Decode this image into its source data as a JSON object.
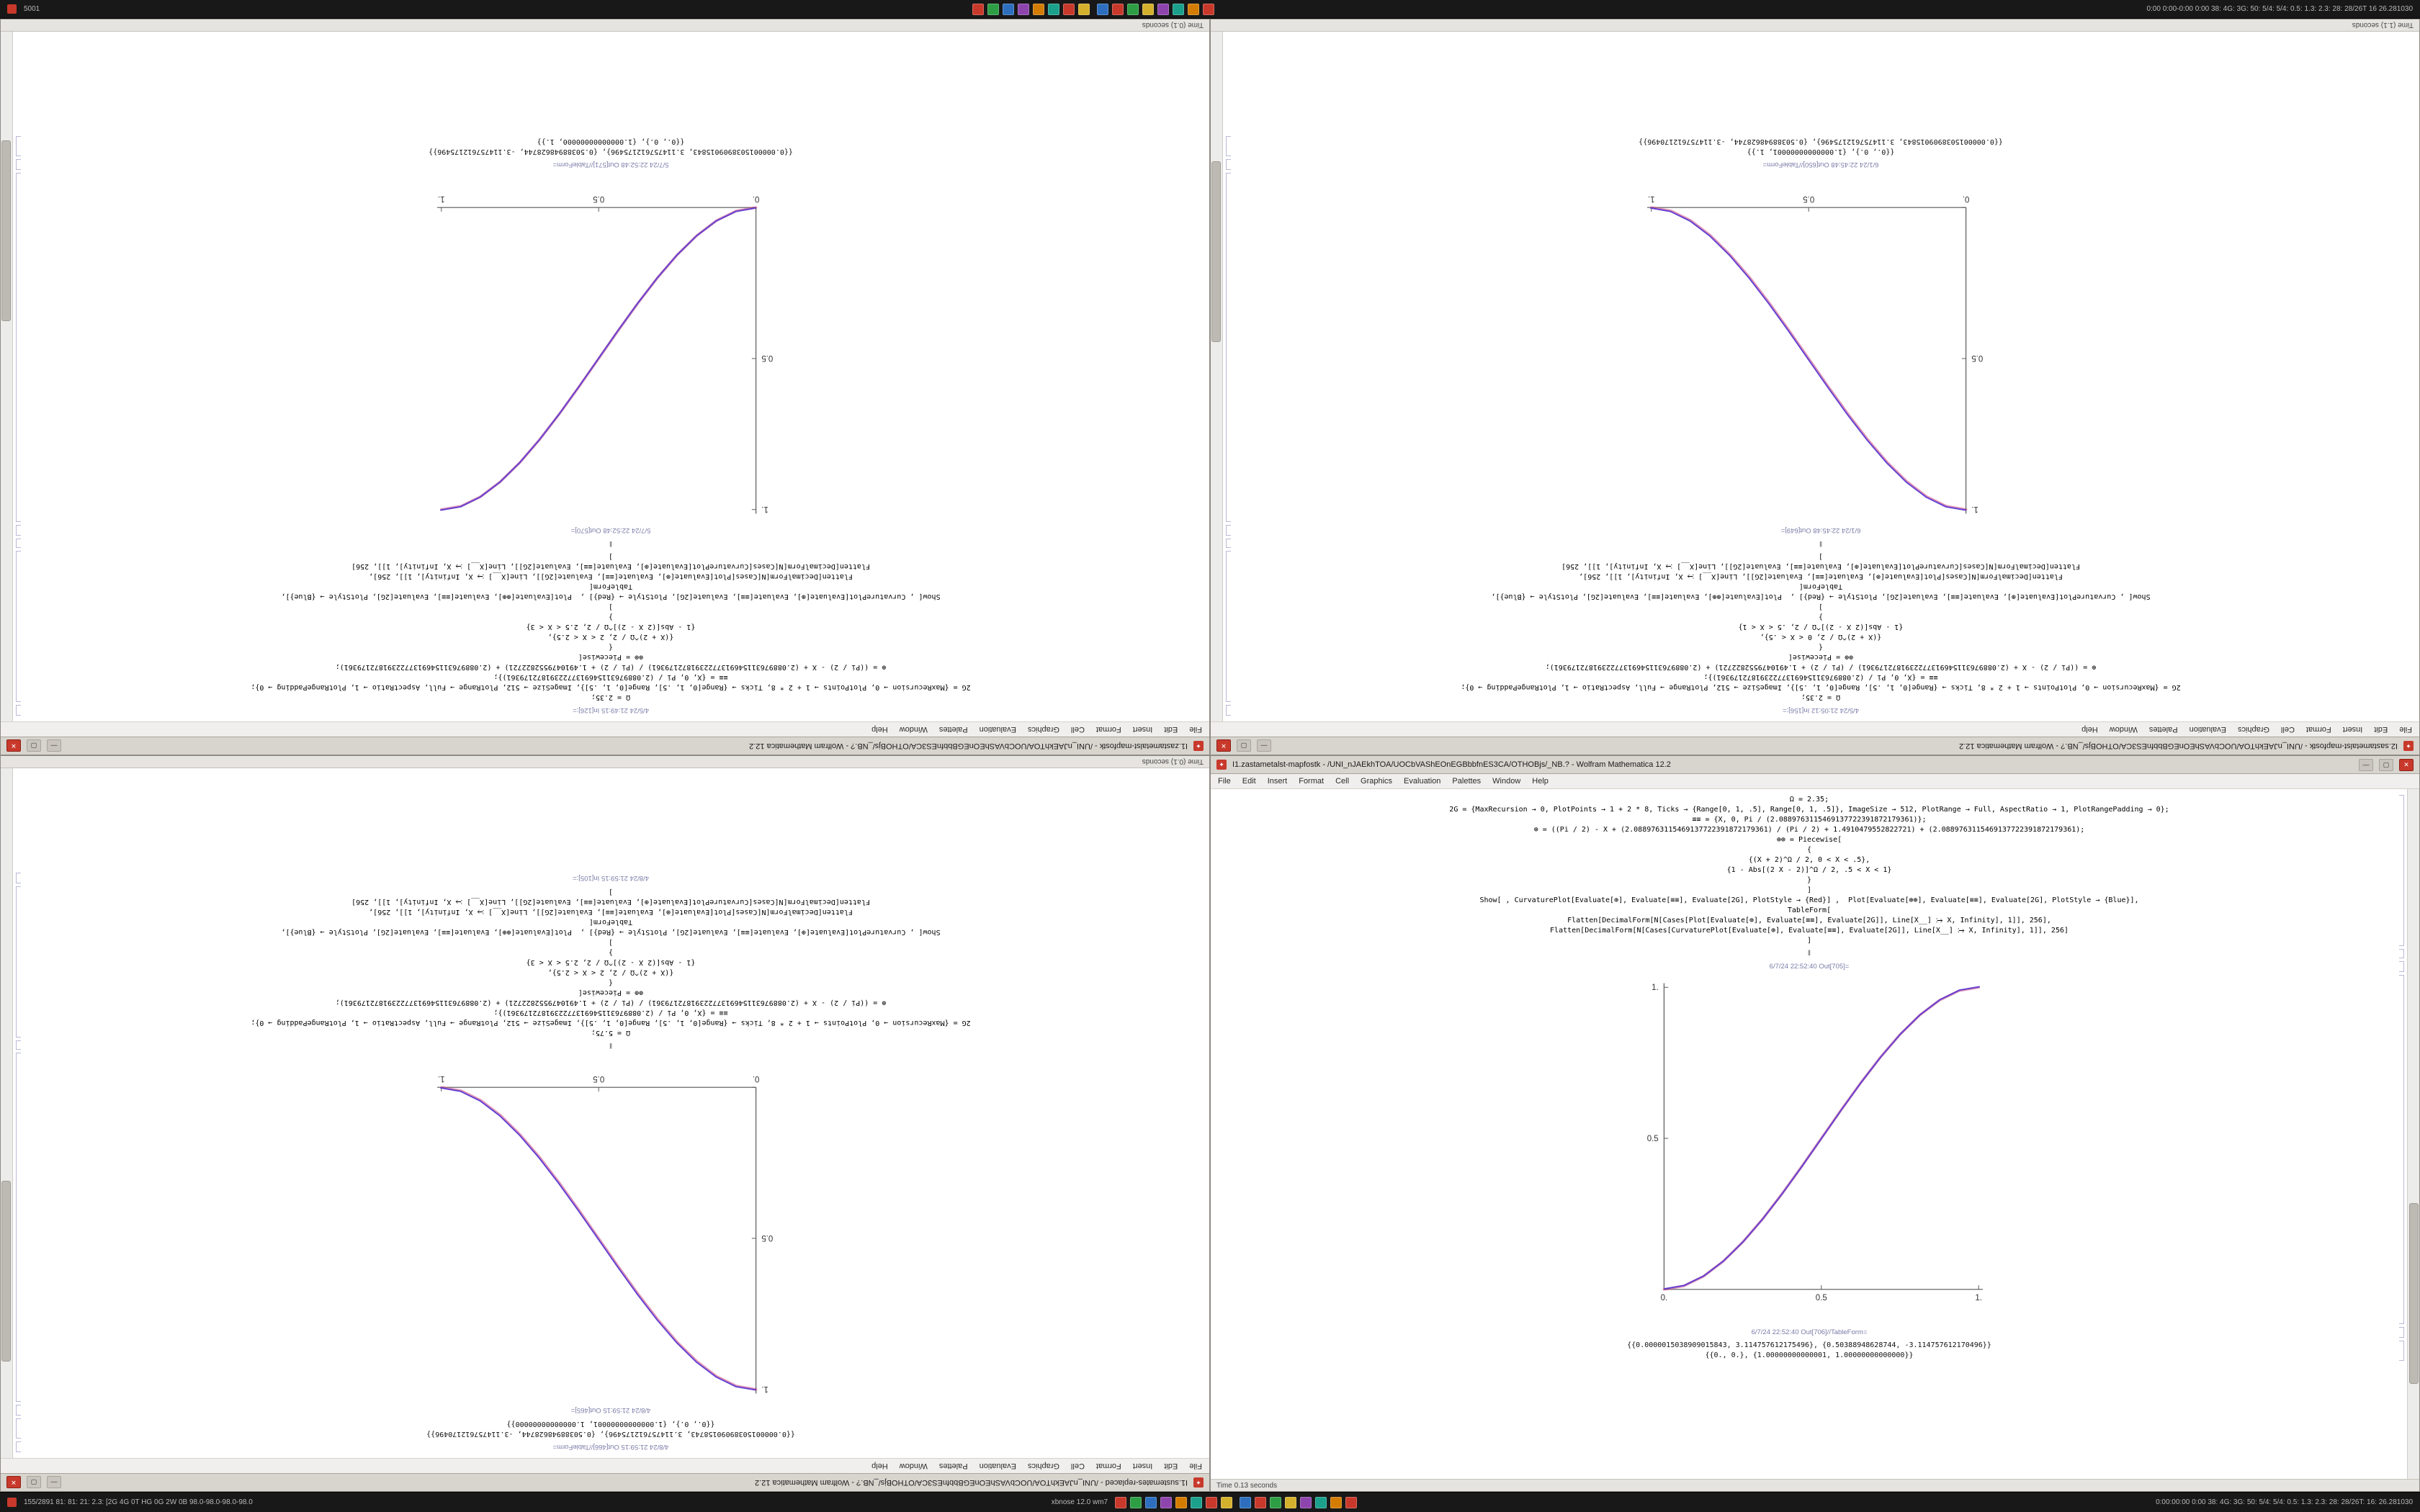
{
  "window_chrome": {
    "app_icon": "✦",
    "minimize": "—",
    "maximize": "▢",
    "close": "✕"
  },
  "menu": [
    "File",
    "Edit",
    "Insert",
    "Format",
    "Cell",
    "Graphics",
    "Evaluation",
    "Palettes",
    "Window",
    "Help"
  ],
  "panels": {
    "top": {
      "left_text": "5001",
      "right_text": "0:00 0:00-0:00 0:00 38: 4G: 3G: 50: 5/4: 5/4: 0.5: 1.3: 2.3: 28: 28/26T 16 26.281030",
      "tray_colors": [
        "#c8392b",
        "#2e9e44",
        "#2d6fbe",
        "#8e44ad",
        "#d37c00",
        "#1ba08c",
        "#c8392b",
        "#d4b12c"
      ],
      "tray_colors2": [
        "#2d6fbe",
        "#c8392b",
        "#2e9e44",
        "#d4b12c",
        "#8e44ad",
        "#1ba08c",
        "#d37c00",
        "#c8392b"
      ]
    },
    "bottom": {
      "left_text": "155/2891 81: 81: 21: 2.3: [2G 4G 0T HG 0G 2W 0B 98.0-98.0-98.0-98.0",
      "center_text": "xbnose 12.0 wm7",
      "right_text": "0:00:00:00 0:00 38: 4G: 3G: 50: 5/4: 5/4: 0.5: 1.3: 2.3: 28: 28/26T: 16: 26.281030",
      "tray_colors": [
        "#c8392b",
        "#2e9e44",
        "#2d6fbe",
        "#8e44ad",
        "#d37c00",
        "#1ba08c",
        "#c8392b",
        "#d4b12c"
      ],
      "tray_colors2": [
        "#2d6fbe",
        "#c8392b",
        "#2e9e44",
        "#d4b12c",
        "#8e44ad",
        "#1ba08c",
        "#d37c00",
        "#c8392b"
      ]
    }
  },
  "windows": [
    {
      "title": "I1.zastametalst-mapfostk - /UNI_nJAEkhTOA/UOCbVAShEOnEGBbbfnES3CA/OTHOBjs/_NB.? - Wolfram Mathematica 12.2",
      "status": "Time (0.1) seconds",
      "sections": [
        {
          "type": "label",
          "text": "4/5/24 21:49:15 In[126]:="
        },
        {
          "type": "code",
          "lines": [
            "Ω = 2.35;",
            "2G = {MaxRecursion → 0, PlotPoints → 1 + 2 * 8, Ticks → {Range[0, 1, .5], Range[0, 1, .5]}, ImageSize → 512, PlotRange → Full, AspectRatio → 1, PlotRangePadding → 0};",
            "≡≡ = {X, 0, Pi / (2.0889763115469137722391872179361)};",
            "⊕ = ((Pi / 2) - X + (2.0889763115469137722391872179361) / (Pi / 2) + 1.4910479552822721) + (2.0889763115469137722391872179361);",
            "⊕⊕ = Piecewise[",
            "{",
            "{(X + 2)^Ω / 2, 2 < X < 2.5},",
            "{1 - Abs[(2 X - 2)]^Ω / 2, 2.5 < X < 3}",
            "}",
            "]",
            "Show[ , CurvaturePlot[Evaluate[⊕], Evaluate[≡≡], Evaluate[2G], PlotStyle → {Red}] ,  Plot[Evaluate[⊕⊕], Evaluate[≡≡], Evaluate[2G], PlotStyle → {Blue}],",
            "TableForm[",
            "Flatten[DecimalForm[N[Cases[Plot[Evaluate[⊕], Evaluate[≡≡], Evaluate[2G]], Line[X__] ⧴ X, Infinity], 1]], 256],",
            "Flatten[DecimalForm[N[Cases[CurvaturePlot[Evaluate[⊕], Evaluate[≡≡], Evaluate[2G]], Line[X__] ⧴ X, Infinity], 1]], 256]",
            "]"
          ]
        },
        {
          "type": "sep",
          "text": "‖"
        },
        {
          "type": "label",
          "text": "5/7/24 22:52:48 Out[570]="
        },
        {
          "type": "plot",
          "chart": 0
        },
        {
          "type": "label",
          "text": "5/7/24 22:52:48 Out[571]//TableForm="
        },
        {
          "type": "numbers",
          "lines": [
            "{{0.0000015038909015843, 3.114757612175496}, {0.50388948628744, -3.114757612175496}}",
            "{{0., 0.}, {1.00000000000000, 1.}}"
          ]
        }
      ]
    },
    {
      "title": "I2.sastametalst-mapfostk - /UNI_nJAEkhTOA/UOCbVAShEOnEGBbbfnES3CA/OTHOBjs/_NB.? - Wolfram Mathematica 12.2",
      "status": "Time (1.1) seconds",
      "sections": [
        {
          "type": "label",
          "text": "4/5/24 21:05:12 In[156]:="
        },
        {
          "type": "code",
          "lines": [
            "Ω = 2.35;",
            "2G = {MaxRecursion → 0, PlotPoints → 1 + 2 * 8, Ticks → {Range[0, 1, .5], Range[0, 1, .5]}, ImageSize → 512, PlotRange → Full, AspectRatio → 1, PlotRangePadding → 0};",
            "≡≡ = {X, 0, Pi / (2.0889763115469137722391872179361)};",
            "⊕ = ((Pi / 2) - X + (2.0889763115469137722391872179361) / (Pi / 2) + 1.4910479552822721) + (2.0889763115469137722391872179361);",
            "⊕⊕ = Piecewise[",
            "{",
            "{(X + 2)^Ω / 2, 0 < X < .5},",
            "{1 - Abs[(2 X - 2)]^Ω / 2, .5 < X < 1}",
            "}",
            "]",
            "Show[ , CurvaturePlot[Evaluate[⊕], Evaluate[≡≡], Evaluate[2G], PlotStyle → {Red}] ,  Plot[Evaluate[⊕⊕], Evaluate[≡≡], Evaluate[2G], PlotStyle → {Blue}],",
            "TableForm[",
            "Flatten[DecimalForm[N[Cases[Plot[Evaluate[⊕], Evaluate[≡≡], Evaluate[2G]], Line[X__] ⧴ X, Infinity], 1]], 256],",
            "Flatten[DecimalForm[N[Cases[CurvaturePlot[Evaluate[⊕], Evaluate[≡≡], Evaluate[2G]], Line[X__] ⧴ X, Infinity], 1]], 256]",
            "]"
          ]
        },
        {
          "type": "sep",
          "text": "‖"
        },
        {
          "type": "label",
          "text": "6/1/24 22:45:48 Out[649]="
        },
        {
          "type": "plot",
          "chart": 1
        },
        {
          "type": "label",
          "text": "6/1/24 22:45:48 Out[650]//TableForm="
        },
        {
          "type": "numbers",
          "lines": [
            "{{0., 0.}, {1.00000000000001, 1.}}",
            "{{0.0000015038909015843, 3.114757612175496}, {0.50388948628744, -3.114757612170496}}"
          ]
        }
      ]
    },
    {
      "title": "I1.sustemates-replaced - /UNI_nJAEkhTOA/UOCbVAShEOnEGBbbfnES3CA/OTHOBjs/_NB.? - Wolfram Mathematica 12.2",
      "status": "Time (0.1) seconds",
      "sections": [
        {
          "type": "label",
          "text": "4/8/24 21:59:15 Out[466]//TableForm="
        },
        {
          "type": "numbers",
          "lines": [
            "{{0.00000150389090158743, 3.114757612175496}, {0.50388948628744, -3.114757612170496}}",
            "{{0., 0.}, {1.00000000000001, 1.00000000000000}}"
          ]
        },
        {
          "type": "label",
          "text": "4/8/24 21:59:15 Out[465]="
        },
        {
          "type": "plot",
          "chart": 2
        },
        {
          "type": "sep",
          "text": "‖"
        },
        {
          "type": "code",
          "lines": [
            "Ω = 5.75;",
            "2G = {MaxRecursion → 0, PlotPoints → 1 + 2 * 8, Ticks → {Range[0, 1, .5], Range[0, 1, .5]}, ImageSize → 512, PlotRange → Full, AspectRatio → 1, PlotRangePadding → 0};",
            "≡≡ = {X, 0, Pi / (2.0889763115469137722391872179361)};",
            "⊕ = ((Pi / 2) - X + (2.0889763115469137722391872179361) / (Pi / 2) + 1.4910479552822721) + (2.0889763115469137722391872179361);",
            "⊕⊕ = Piecewise[",
            "{",
            "{(X + 2)^Ω / 2, 2 < X < 2.5},",
            "{1 - Abs[(2 X - 2)]^Ω / 2, 2.5 < X < 3}",
            "}",
            "]",
            "Show[ , CurvaturePlot[Evaluate[⊕], Evaluate[≡≡], Evaluate[2G], PlotStyle → {Red}] ,  Plot[Evaluate[⊕⊕], Evaluate[≡≡], Evaluate[2G], PlotStyle → {Blue}],",
            "TableForm[",
            "Flatten[DecimalForm[N[Cases[Plot[Evaluate[⊕], Evaluate[≡≡], Evaluate[2G]], Line[X__] ⧴ X, Infinity], 1]], 256],",
            "Flatten[DecimalForm[N[Cases[CurvaturePlot[Evaluate[⊕], Evaluate[≡≡], Evaluate[2G]], Line[X__] ⧴ X, Infinity], 1]], 256]",
            "]"
          ]
        },
        {
          "type": "label",
          "text": "4/8/24 21:59:15 In[105]:="
        }
      ]
    },
    {
      "title": "I1.zastametalst-mapfostk - /UNI_nJAEkhTOA/UOCbVAShEOnEGBbbfnES3CA/OTHOBjs/_NB.? - Wolfram Mathematica 12.2",
      "status": "Time 0.13 seconds",
      "sections": [
        {
          "type": "code",
          "lines": [
            "Ω = 2.35;",
            "2G = {MaxRecursion → 0, PlotPoints → 1 + 2 * 8, Ticks → {Range[0, 1, .5], Range[0, 1, .5]}, ImageSize → 512, PlotRange → Full, AspectRatio → 1, PlotRangePadding → 0};",
            "≡≡ = {X, 0, Pi / (2.0889763115469137722391872179361)};",
            "⊕ = ((Pi / 2) - X + (2.0889763115469137722391872179361) / (Pi / 2) + 1.4910479552822721) + (2.0889763115469137722391872179361);",
            "⊕⊕ = Piecewise[",
            "{",
            "{(X + 2)^Ω / 2, 0 < X < .5},",
            "{1 - Abs[(2 X - 2)]^Ω / 2, .5 < X < 1}",
            "}",
            "]",
            "Show[ , CurvaturePlot[Evaluate[⊕], Evaluate[≡≡], Evaluate[2G], PlotStyle → {Red}] ,  Plot[Evaluate[⊕⊕], Evaluate[≡≡], Evaluate[2G], PlotStyle → {Blue}],",
            "TableForm[",
            "Flatten[DecimalForm[N[Cases[Plot[Evaluate[⊕], Evaluate[≡≡], Evaluate[2G]], Line[X__] ⧴ X, Infinity], 1]], 256],",
            "Flatten[DecimalForm[N[Cases[CurvaturePlot[Evaluate[⊕], Evaluate[≡≡], Evaluate[2G]], Line[X__] ⧴ X, Infinity], 1]], 256]",
            "]"
          ]
        },
        {
          "type": "sep",
          "text": "‖"
        },
        {
          "type": "label",
          "text": "6/7/24 22:52:40 Out[705]="
        },
        {
          "type": "plot",
          "chart": 3
        },
        {
          "type": "label",
          "text": "6/7/24 22:52:40 Out[706]//TableForm="
        },
        {
          "type": "numbers",
          "lines": [
            "{{0.0000015038909015843, 3.114757612175496}, {0.50388948628744, -3.114757612170496}}",
            "{{0., 0.}, {1.00000000000001, 1.00000000000000}}"
          ]
        }
      ]
    }
  ],
  "chart_data": [
    {
      "type": "line",
      "title": "",
      "xlabel": "",
      "ylabel": "",
      "xlim": [
        0,
        1
      ],
      "ylim": [
        0,
        1
      ],
      "grid": false,
      "legend": "none",
      "x_ticks": [
        0,
        0.5,
        1
      ],
      "x_tick_labels": [
        "0.",
        "0.5",
        "1."
      ],
      "y_ticks": [
        0,
        0.5,
        1
      ],
      "y_tick_labels": [
        "",
        "0.5",
        "1."
      ],
      "x": [
        0,
        0.0625,
        0.125,
        0.1875,
        0.25,
        0.3125,
        0.375,
        0.4375,
        0.5,
        0.5625,
        0.625,
        0.6875,
        0.75,
        0.8125,
        0.875,
        0.9375,
        1
      ],
      "series": [
        {
          "name": "CurvaturePlot (Red)",
          "color": "#c73a76",
          "values": [
            0,
            0.0112,
            0.043,
            0.0923,
            0.1563,
            0.2319,
            0.3164,
            0.4067,
            0.5,
            0.5933,
            0.6836,
            0.7681,
            0.8438,
            0.9077,
            0.957,
            0.9888,
            1
          ]
        },
        {
          "name": "Plot (Blue)",
          "color": "#5b3bd6",
          "values": [
            0,
            0.0112,
            0.043,
            0.0923,
            0.1563,
            0.2319,
            0.3164,
            0.4067,
            0.5,
            0.5933,
            0.6836,
            0.7681,
            0.8438,
            0.9077,
            0.957,
            0.9888,
            1
          ]
        }
      ]
    },
    {
      "type": "line",
      "title": "",
      "xlabel": "",
      "ylabel": "",
      "xlim": [
        0,
        1
      ],
      "ylim": [
        0,
        1
      ],
      "grid": false,
      "legend": "none",
      "x_ticks": [
        0,
        0.5,
        1
      ],
      "x_tick_labels": [
        "0.",
        "0.5",
        "1."
      ],
      "y_ticks": [
        0,
        0.5,
        1
      ],
      "y_tick_labels": [
        "",
        "0.5",
        "1."
      ],
      "x": [
        0,
        0.0625,
        0.125,
        0.1875,
        0.25,
        0.3125,
        0.375,
        0.4375,
        0.5,
        0.5625,
        0.625,
        0.6875,
        0.75,
        0.8125,
        0.875,
        0.9375,
        1
      ],
      "series": [
        {
          "name": "CurvaturePlot (Red)",
          "color": "#c73a76",
          "values": [
            1,
            0.9888,
            0.957,
            0.9077,
            0.8438,
            0.7681,
            0.6836,
            0.5933,
            0.5,
            0.4067,
            0.3164,
            0.2319,
            0.1563,
            0.0923,
            0.043,
            0.0112,
            0
          ]
        },
        {
          "name": "Plot (Blue)",
          "color": "#5b3bd6",
          "values": [
            1,
            0.9888,
            0.957,
            0.9077,
            0.8438,
            0.7681,
            0.6836,
            0.5933,
            0.5,
            0.4067,
            0.3164,
            0.2319,
            0.1563,
            0.0923,
            0.043,
            0.0112,
            0
          ]
        }
      ]
    },
    {
      "type": "line",
      "title": "",
      "xlabel": "",
      "ylabel": "",
      "xlim": [
        0,
        1
      ],
      "ylim": [
        0,
        1
      ],
      "grid": false,
      "legend": "none",
      "x_ticks": [
        0,
        0.5,
        1
      ],
      "x_tick_labels": [
        "0.",
        "0.5",
        "1."
      ],
      "y_ticks": [
        0,
        0.5,
        1
      ],
      "y_tick_labels": [
        "",
        "0.5",
        "1."
      ],
      "x": [
        0,
        0.0625,
        0.125,
        0.1875,
        0.25,
        0.3125,
        0.375,
        0.4375,
        0.5,
        0.5625,
        0.625,
        0.6875,
        0.75,
        0.8125,
        0.875,
        0.9375,
        1
      ],
      "series": [
        {
          "name": "CurvaturePlot (Red)",
          "color": "#c73a76",
          "values": [
            1,
            0.9888,
            0.957,
            0.9077,
            0.8438,
            0.7681,
            0.6836,
            0.5933,
            0.5,
            0.4067,
            0.3164,
            0.2319,
            0.1563,
            0.0923,
            0.043,
            0.0112,
            0
          ]
        },
        {
          "name": "Plot (Blue)",
          "color": "#5b3bd6",
          "values": [
            1,
            0.9888,
            0.957,
            0.9077,
            0.8438,
            0.7681,
            0.6836,
            0.5933,
            0.5,
            0.4067,
            0.3164,
            0.2319,
            0.1563,
            0.0923,
            0.043,
            0.0112,
            0
          ]
        }
      ]
    },
    {
      "type": "line",
      "title": "",
      "xlabel": "",
      "ylabel": "",
      "xlim": [
        0,
        1
      ],
      "ylim": [
        0,
        1
      ],
      "grid": false,
      "legend": "none",
      "x_ticks": [
        0,
        0.5,
        1
      ],
      "x_tick_labels": [
        "0.",
        "0.5",
        "1."
      ],
      "y_ticks": [
        0,
        0.5,
        1
      ],
      "y_tick_labels": [
        "",
        "0.5",
        "1."
      ],
      "x": [
        0,
        0.0625,
        0.125,
        0.1875,
        0.25,
        0.3125,
        0.375,
        0.4375,
        0.5,
        0.5625,
        0.625,
        0.6875,
        0.75,
        0.8125,
        0.875,
        0.9375,
        1
      ],
      "series": [
        {
          "name": "CurvaturePlot (Red)",
          "color": "#c73a76",
          "values": [
            0,
            0.0112,
            0.043,
            0.0923,
            0.1563,
            0.2319,
            0.3164,
            0.4067,
            0.5,
            0.5933,
            0.6836,
            0.7681,
            0.8438,
            0.9077,
            0.957,
            0.9888,
            1
          ]
        },
        {
          "name": "Plot (Blue)",
          "color": "#5b3bd6",
          "values": [
            0,
            0.0112,
            0.043,
            0.0923,
            0.1563,
            0.2319,
            0.3164,
            0.4067,
            0.5,
            0.5933,
            0.6836,
            0.7681,
            0.8438,
            0.9077,
            0.957,
            0.9888,
            1
          ]
        }
      ]
    }
  ]
}
